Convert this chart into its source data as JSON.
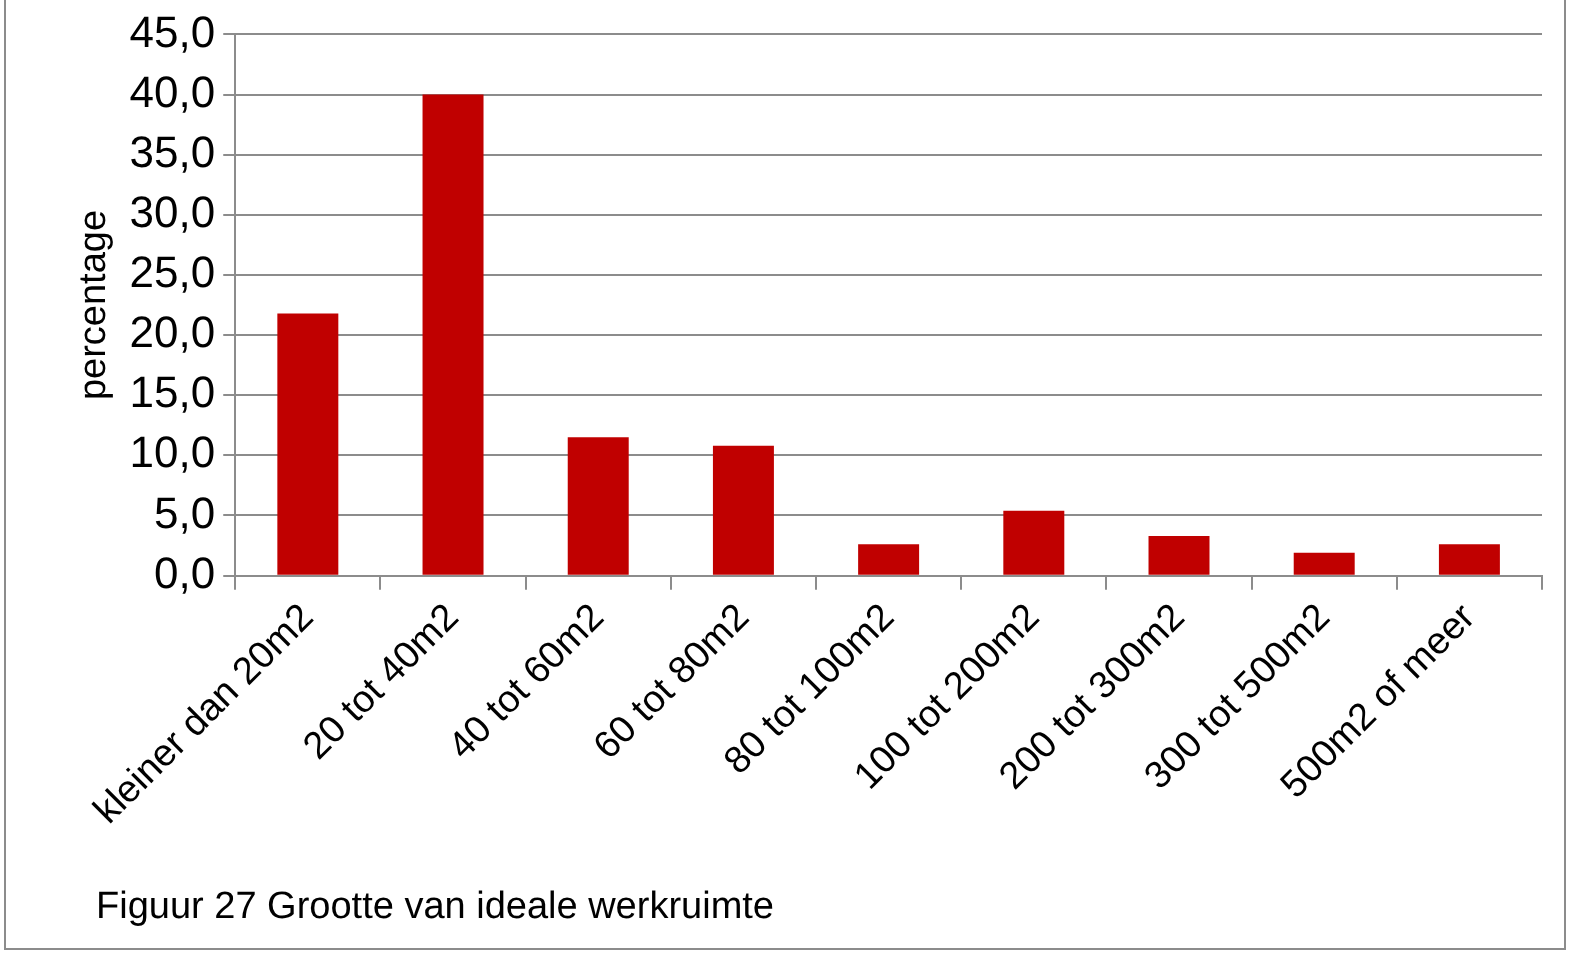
{
  "chart_data": {
    "type": "bar",
    "ylabel": "percentage",
    "categories": [
      "kleiner dan 20m2",
      "20 tot 40m2",
      "40 tot 60m2",
      "60 tot 80m2",
      "80 tot 100m2",
      "100 tot 200m2",
      "200 tot 300m2",
      "300 tot 500m2",
      "500m2 of meer"
    ],
    "values": [
      21.8,
      40.0,
      11.5,
      10.8,
      2.6,
      5.4,
      3.3,
      1.9,
      2.6
    ],
    "color": "#c00000",
    "ylim": [
      0,
      45
    ],
    "yticks": [
      {
        "value": 0,
        "label": "0,0"
      },
      {
        "value": 5,
        "label": "5,0"
      },
      {
        "value": 10,
        "label": "10,0"
      },
      {
        "value": 15,
        "label": "15,0"
      },
      {
        "value": 20,
        "label": "20,0"
      },
      {
        "value": 25,
        "label": "25,0"
      },
      {
        "value": 30,
        "label": "30,0"
      },
      {
        "value": 35,
        "label": "35,0"
      },
      {
        "value": 40,
        "label": "40,0"
      },
      {
        "value": 45,
        "label": "45,0"
      }
    ],
    "grid": "y",
    "annotations": [
      "Figuur 27 Grootte van ideale werkruimte"
    ]
  }
}
